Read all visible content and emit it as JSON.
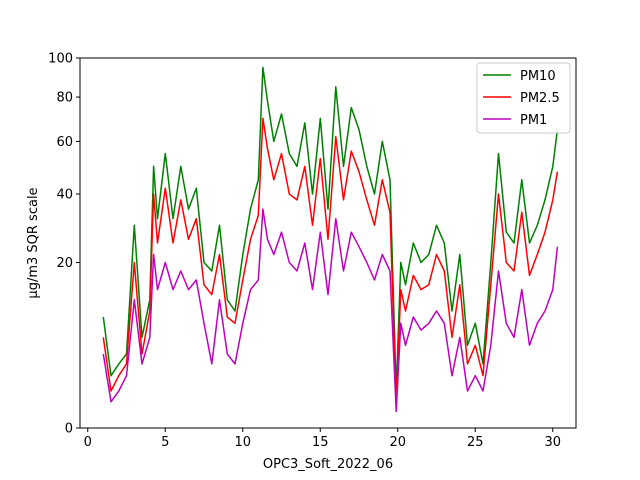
{
  "chart_data": {
    "type": "line",
    "title": "",
    "xlabel": "OPC3_Soft_2022_06",
    "ylabel": "µg/m3 SQR scale",
    "y_scale": "sqrt",
    "xlim": [
      -0.5,
      31.5
    ],
    "ylim": [
      0,
      100
    ],
    "x_ticks": [
      0,
      5,
      10,
      15,
      20,
      25,
      30
    ],
    "y_ticks": [
      0,
      20,
      40,
      60,
      80,
      100
    ],
    "grid": false,
    "legend_position": "top-right",
    "x": [
      1,
      1.5,
      2,
      2.5,
      3,
      3.5,
      4,
      4.25,
      4.5,
      5,
      5.5,
      6,
      6.5,
      7,
      7.5,
      8,
      8.5,
      9,
      9.5,
      10,
      10.5,
      11,
      11.3,
      11.6,
      12,
      12.5,
      13,
      13.5,
      14,
      14.5,
      15,
      15.5,
      16,
      16.5,
      17,
      17.5,
      18,
      18.5,
      19,
      19.5,
      19.9,
      20.2,
      20.5,
      21,
      21.5,
      22,
      22.5,
      23,
      23.5,
      24,
      24.5,
      25,
      25.5,
      26,
      26.5,
      27,
      27.5,
      28,
      28.5,
      29,
      29.5,
      30,
      30.3
    ],
    "series": [
      {
        "name": "PM10",
        "color": "#008000",
        "values": [
          9,
          2,
          3,
          4,
          30,
          6,
          12,
          50,
          32,
          55,
          32,
          50,
          35,
          42,
          20,
          18,
          30,
          12,
          10,
          22,
          35,
          45,
          95,
          78,
          60,
          72,
          55,
          50,
          68,
          40,
          70,
          35,
          85,
          50,
          75,
          65,
          50,
          40,
          60,
          45,
          1,
          20,
          15,
          25,
          20,
          22,
          30,
          25,
          10,
          22,
          5,
          8,
          3,
          20,
          55,
          28,
          25,
          45,
          25,
          30,
          38,
          50,
          65
        ]
      },
      {
        "name": "PM2.5",
        "color": "#ff0000",
        "values": [
          6,
          1,
          2,
          3,
          20,
          4,
          10,
          40,
          25,
          42,
          25,
          38,
          26,
          32,
          15,
          13,
          22,
          9,
          8,
          16,
          26,
          33,
          70,
          57,
          45,
          55,
          40,
          38,
          50,
          30,
          53,
          26,
          62,
          38,
          56,
          48,
          38,
          30,
          45,
          34,
          0.5,
          14,
          10,
          17,
          14,
          15,
          22,
          18,
          6,
          15,
          3,
          5,
          2,
          15,
          40,
          20,
          18,
          34,
          17,
          22,
          28,
          38,
          48
        ]
      },
      {
        "name": "PM1",
        "color": "#bf00bf",
        "values": [
          4,
          0.5,
          1,
          2,
          12,
          3,
          6,
          22,
          14,
          20,
          14,
          18,
          14,
          16,
          8,
          3,
          12,
          4,
          3,
          8,
          14,
          16,
          35,
          26,
          22,
          28,
          20,
          18,
          25,
          14,
          28,
          13,
          32,
          18,
          28,
          24,
          20,
          16,
          22,
          18,
          0.2,
          8,
          5,
          9,
          7,
          8,
          10,
          8,
          2,
          6,
          1,
          2,
          1,
          5,
          18,
          8,
          6,
          14,
          5,
          8,
          10,
          14,
          24
        ]
      }
    ]
  }
}
